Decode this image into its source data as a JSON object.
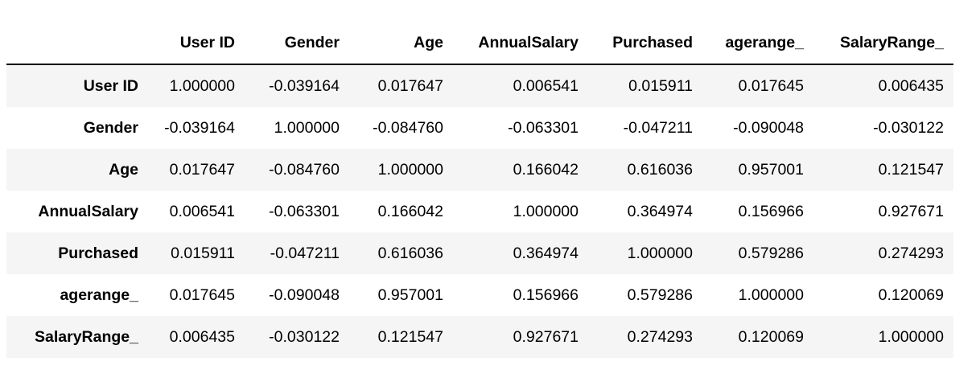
{
  "table": {
    "index_header": "",
    "columns": [
      "User ID",
      "Gender",
      "Age",
      "AnnualSalary",
      "Purchased",
      "agerange_",
      "SalaryRange_"
    ],
    "rows": [
      {
        "label": "User ID",
        "values": [
          "1.000000",
          "-0.039164",
          "0.017647",
          "0.006541",
          "0.015911",
          "0.017645",
          "0.006435"
        ]
      },
      {
        "label": "Gender",
        "values": [
          "-0.039164",
          "1.000000",
          "-0.084760",
          "-0.063301",
          "-0.047211",
          "-0.090048",
          "-0.030122"
        ]
      },
      {
        "label": "Age",
        "values": [
          "0.017647",
          "-0.084760",
          "1.000000",
          "0.166042",
          "0.616036",
          "0.957001",
          "0.121547"
        ]
      },
      {
        "label": "AnnualSalary",
        "values": [
          "0.006541",
          "-0.063301",
          "0.166042",
          "1.000000",
          "0.364974",
          "0.156966",
          "0.927671"
        ]
      },
      {
        "label": "Purchased",
        "values": [
          "0.015911",
          "-0.047211",
          "0.616036",
          "0.364974",
          "1.000000",
          "0.579286",
          "0.274293"
        ]
      },
      {
        "label": "agerange_",
        "values": [
          "0.017645",
          "-0.090048",
          "0.957001",
          "0.156966",
          "0.579286",
          "1.000000",
          "0.120069"
        ]
      },
      {
        "label": "SalaryRange_",
        "values": [
          "0.006435",
          "-0.030122",
          "0.121547",
          "0.927671",
          "0.274293",
          "0.120069",
          "1.000000"
        ]
      }
    ]
  },
  "colors": {
    "stripe": "#f5f5f5",
    "header_rule": "#000000",
    "text": "#000000"
  }
}
